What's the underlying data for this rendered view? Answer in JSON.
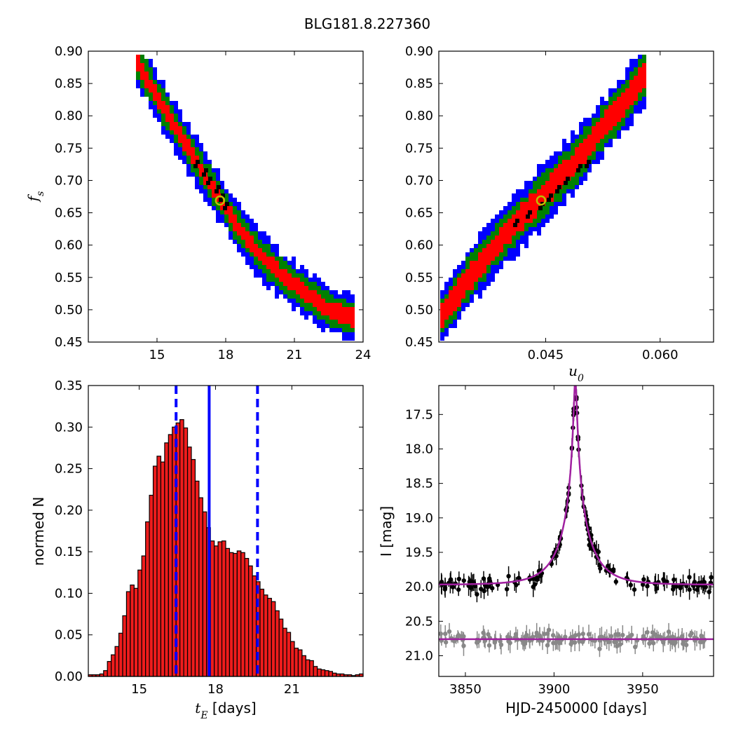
{
  "figure_title": "BLG181.8.227360",
  "colors": {
    "sigma1": "#ff0000",
    "sigma2": "#008000",
    "sigma3": "#0000ff",
    "samples": "#000000",
    "best_fit_marker": "#bfbf00",
    "hist_bar": "#ee1c1c",
    "hist_lines": "#0000ff",
    "model": "#a020a0",
    "data_main": "#000000",
    "data_baseline": "#888888"
  },
  "chart_data": [
    {
      "id": "fs_vs_tE",
      "type": "heatmap",
      "title": "",
      "xlabel": "",
      "ylabel": "f_s",
      "xlim": [
        12,
        24
      ],
      "ylim": [
        0.45,
        0.9
      ],
      "xticks": [
        "15",
        "18",
        "21",
        "24"
      ],
      "yticks": [
        "0.45",
        "0.50",
        "0.55",
        "0.60",
        "0.65",
        "0.70",
        "0.75",
        "0.80",
        "0.85",
        "0.90"
      ],
      "contours": {
        "axis_x": [
          14.1,
          15.5,
          16.5,
          17.5,
          18.5,
          19.5,
          20.5,
          21.5,
          22.5,
          23.6
        ],
        "axis_y": [
          0.885,
          0.8,
          0.742,
          0.685,
          0.63,
          0.585,
          0.552,
          0.525,
          0.5,
          0.487
        ],
        "half_widths_y": [
          0.012,
          0.024,
          0.036
        ],
        "levels": [
          "1-sigma",
          "2-sigma",
          "3-sigma"
        ]
      },
      "core_samples": [
        [
          16.6,
          0.727
        ],
        [
          16.9,
          0.715
        ],
        [
          17.2,
          0.7
        ],
        [
          17.5,
          0.686
        ],
        [
          17.7,
          0.675
        ],
        [
          17.9,
          0.662
        ]
      ],
      "best_fit": {
        "tE": 17.75,
        "fs": 0.669
      }
    },
    {
      "id": "fs_vs_u0",
      "type": "heatmap",
      "title": "",
      "xlabel": "u_0",
      "ylabel": "",
      "xlim": [
        0.031,
        0.067
      ],
      "ylim": [
        0.45,
        0.9
      ],
      "xticks": [
        "0.045",
        "0.060"
      ],
      "yticks": [
        "0.45",
        "0.50",
        "0.55",
        "0.60",
        "0.65",
        "0.70",
        "0.75",
        "0.80",
        "0.85",
        "0.90"
      ],
      "contours": {
        "axis_x": [
          0.0312,
          0.035,
          0.04,
          0.045,
          0.049,
          0.052,
          0.055,
          0.058
        ],
        "axis_y": [
          0.485,
          0.55,
          0.62,
          0.68,
          0.73,
          0.775,
          0.815,
          0.865
        ],
        "half_widths_y": [
          0.018,
          0.032,
          0.045
        ],
        "levels": [
          "1-sigma",
          "2-sigma",
          "3-sigma"
        ]
      },
      "core_samples": [
        [
          0.041,
          0.637
        ],
        [
          0.0425,
          0.648
        ],
        [
          0.0438,
          0.66
        ],
        [
          0.0452,
          0.675
        ],
        [
          0.0465,
          0.688
        ],
        [
          0.0475,
          0.702
        ],
        [
          0.0488,
          0.716
        ],
        [
          0.05,
          0.728
        ]
      ],
      "best_fit": {
        "u0": 0.0444,
        "fs": 0.669
      }
    },
    {
      "id": "tE_histogram",
      "type": "bar",
      "title": "",
      "xlabel": "t_E [days]",
      "ylabel": "normed N",
      "xlim": [
        13.0,
        23.8
      ],
      "ylim": [
        0.0,
        0.35
      ],
      "xticks": [
        "15",
        "18",
        "21"
      ],
      "yticks": [
        "0.00",
        "0.05",
        "0.10",
        "0.15",
        "0.20",
        "0.25",
        "0.30",
        "0.35"
      ],
      "bin_start": 13.0,
      "bin_width": 0.15,
      "values": [
        0.002,
        0.002,
        0.002,
        0.003,
        0.007,
        0.018,
        0.026,
        0.036,
        0.052,
        0.073,
        0.102,
        0.11,
        0.106,
        0.128,
        0.145,
        0.186,
        0.218,
        0.253,
        0.265,
        0.258,
        0.281,
        0.291,
        0.3,
        0.305,
        0.309,
        0.299,
        0.276,
        0.261,
        0.235,
        0.215,
        0.198,
        0.179,
        0.163,
        0.157,
        0.162,
        0.163,
        0.154,
        0.149,
        0.148,
        0.151,
        0.149,
        0.142,
        0.133,
        0.121,
        0.114,
        0.105,
        0.098,
        0.094,
        0.09,
        0.079,
        0.069,
        0.058,
        0.053,
        0.042,
        0.034,
        0.032,
        0.025,
        0.02,
        0.019,
        0.012,
        0.009,
        0.008,
        0.007,
        0.006,
        0.004,
        0.003,
        0.003,
        0.002,
        0.002,
        0.001,
        0.002,
        0.003
      ],
      "median": 17.75,
      "lower": 16.45,
      "upper": 19.65
    },
    {
      "id": "light_curve",
      "type": "scatter",
      "title": "",
      "xlabel": "HJD-2450000 [days]",
      "ylabel": "I [mag]",
      "xlim": [
        3835,
        3990
      ],
      "ylim": [
        21.3,
        17.08
      ],
      "xticks": [
        "3850",
        "3900",
        "3950"
      ],
      "yticks": [
        "17.5",
        "18.0",
        "18.5",
        "19.0",
        "19.5",
        "20.0",
        "20.5",
        "21.0"
      ],
      "model": {
        "t0": 3912.0,
        "u0": 0.0444,
        "tE": 17.75,
        "fs": 0.669,
        "baseline": 19.97,
        "baseline_flat": 20.76
      },
      "series": [
        {
          "points_count": 170,
          "baseline_mag": 19.97,
          "scatter_mag": 0.15
        },
        {
          "points_count": 150,
          "baseline_mag": 20.76,
          "scatter_mag": 0.12
        }
      ]
    }
  ]
}
